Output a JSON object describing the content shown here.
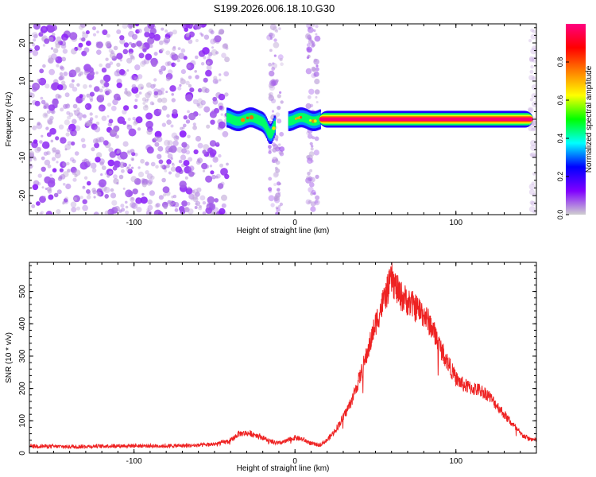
{
  "title": "S199.2026.006.18.10.G30",
  "chart_data": [
    {
      "type": "heatmap",
      "id": "spectrogram",
      "xlabel": "Height of straight line (km)",
      "ylabel": "Frequency (Hz)",
      "xlim": [
        -165,
        150
      ],
      "ylim": [
        -25,
        25
      ],
      "xticks": [
        -100,
        0,
        100
      ],
      "xtick_labels": [
        "-100",
        "0",
        "100"
      ],
      "yticks": [
        -20,
        -10,
        0,
        10,
        20
      ],
      "ytick_labels": [
        "-20",
        "-10",
        "0",
        "10",
        "20"
      ],
      "colorbar": {
        "label": "Normalized spectral amplitude",
        "range": [
          0,
          1
        ],
        "ticks": [
          0.0,
          0.2,
          0.4,
          0.6,
          0.8
        ],
        "tick_labels": [
          "0.0",
          "0.2",
          "0.4",
          "0.6",
          "0.8"
        ],
        "stops": [
          "#cfcfcf",
          "#8000ff",
          "#0000ff",
          "#00ffff",
          "#00ff00",
          "#ffff00",
          "#ff8000",
          "#ff0000",
          "#ff0080"
        ]
      },
      "regions": [
        {
          "name": "broadband noise",
          "x_range": [
            -165,
            -42
          ],
          "f_range": [
            -25,
            25
          ],
          "amplitude": 0.05
        },
        {
          "name": "noise streak",
          "x_range": [
            -16,
            -8
          ],
          "f_range": [
            -25,
            25
          ],
          "amplitude": 0.03
        },
        {
          "name": "noise streak",
          "x_range": [
            8,
            14
          ],
          "f_range": [
            -25,
            25
          ],
          "amplitude": 0.03
        },
        {
          "name": "onset tone",
          "x_range": [
            -42,
            16
          ],
          "f_range": [
            -5,
            2
          ],
          "amplitude": 0.3
        },
        {
          "name": "steady tone",
          "x_range": [
            16,
            148
          ],
          "f_range": [
            -0.8,
            0.8
          ],
          "amplitude": 0.95
        }
      ]
    },
    {
      "type": "line",
      "id": "snr",
      "xlabel": "Height of straight line (km)",
      "ylabel": "SNR (10 * v/v)",
      "xlim": [
        -165,
        150
      ],
      "ylim": [
        0,
        590
      ],
      "xticks": [
        -100,
        0,
        100
      ],
      "xtick_labels": [
        "-100",
        "0",
        "100"
      ],
      "yticks": [
        0,
        100,
        200,
        300,
        400,
        500
      ],
      "ytick_labels": [
        "0",
        "100",
        "200",
        "300",
        "400",
        "500"
      ],
      "series": [
        {
          "name": "SNR",
          "color": "#ee2222",
          "x": [
            -165,
            -140,
            -120,
            -100,
            -80,
            -60,
            -50,
            -40,
            -35,
            -30,
            -25,
            -20,
            -15,
            -10,
            -5,
            0,
            5,
            10,
            15,
            20,
            25,
            30,
            35,
            40,
            45,
            50,
            55,
            58,
            60,
            62,
            65,
            70,
            75,
            80,
            85,
            90,
            95,
            100,
            105,
            110,
            115,
            120,
            125,
            130,
            135,
            140,
            145,
            150
          ],
          "y": [
            22,
            20,
            22,
            23,
            22,
            24,
            28,
            38,
            60,
            62,
            58,
            48,
            35,
            30,
            38,
            48,
            42,
            30,
            25,
            40,
            70,
            110,
            160,
            230,
            310,
            400,
            470,
            510,
            540,
            520,
            490,
            470,
            450,
            430,
            390,
            330,
            280,
            230,
            210,
            200,
            195,
            180,
            150,
            120,
            90,
            60,
            45,
            40
          ]
        }
      ]
    }
  ]
}
